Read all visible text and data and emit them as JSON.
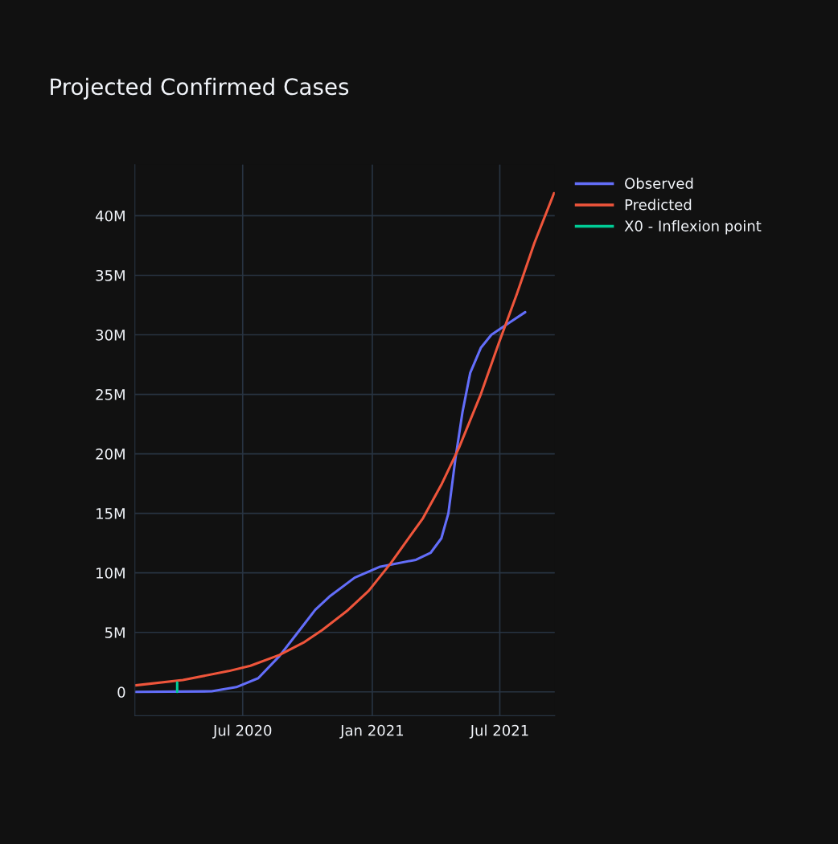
{
  "chart_data": {
    "type": "line",
    "title": "Projected Confirmed Cases",
    "xlim": [
      "2020-01-30",
      "2021-09-17"
    ],
    "xticks": [
      {
        "value": "2020-07-01",
        "label": "Jul 2020"
      },
      {
        "value": "2021-01-01",
        "label": "Jan 2021"
      },
      {
        "value": "2021-07-01",
        "label": "Jul 2021"
      }
    ],
    "ylim": [
      -2000000,
      44300000
    ],
    "yticks": [
      {
        "value": 0,
        "label": "0"
      },
      {
        "value": 5000000,
        "label": "5M"
      },
      {
        "value": 10000000,
        "label": "10M"
      },
      {
        "value": 15000000,
        "label": "15M"
      },
      {
        "value": 20000000,
        "label": "20M"
      },
      {
        "value": 25000000,
        "label": "25M"
      },
      {
        "value": 30000000,
        "label": "30M"
      },
      {
        "value": 35000000,
        "label": "35M"
      },
      {
        "value": 40000000,
        "label": "40M"
      }
    ],
    "grid": true,
    "legend": "top right",
    "marker": "none",
    "line_style": "solid",
    "series": [
      {
        "name": "Observed",
        "color": "#636efa",
        "x": [
          "2020-01-31",
          "2020-05-18",
          "2020-06-22",
          "2020-07-23",
          "2020-08-22",
          "2020-09-16",
          "2020-10-12",
          "2020-11-01",
          "2020-12-07",
          "2021-01-11",
          "2021-03-04",
          "2021-03-25",
          "2021-04-09",
          "2021-04-19",
          "2021-04-29",
          "2021-05-09",
          "2021-05-20",
          "2021-06-04",
          "2021-06-19",
          "2021-07-14",
          "2021-08-06"
        ],
        "values": [
          0,
          50000,
          400000,
          1150000,
          3000000,
          4900000,
          6900000,
          8000000,
          9600000,
          10500000,
          11100000,
          11700000,
          12900000,
          15000000,
          19600000,
          23500000,
          26800000,
          28900000,
          30000000,
          31000000,
          31900000
        ]
      },
      {
        "name": "Predicted",
        "color": "#ef553b",
        "x": [
          "2020-01-31",
          "2020-04-07",
          "2020-06-11",
          "2020-07-12",
          "2020-08-22",
          "2020-09-27",
          "2020-10-22",
          "2020-11-26",
          "2020-12-27",
          "2021-01-27",
          "2021-03-14",
          "2021-04-09",
          "2021-05-04",
          "2021-06-04",
          "2021-06-29",
          "2021-07-25",
          "2021-08-19",
          "2021-09-16"
        ],
        "values": [
          550000,
          1000000,
          1750000,
          2200000,
          3100000,
          4200000,
          5200000,
          6800000,
          8500000,
          10800000,
          14600000,
          17400000,
          20500000,
          25000000,
          29200000,
          33400000,
          37700000,
          41900000
        ]
      },
      {
        "name": "X0 - Inflexion point",
        "color": "#00cc96",
        "x": [
          "2020-03-30",
          "2020-03-30"
        ],
        "values": [
          0,
          800000
        ]
      }
    ]
  }
}
